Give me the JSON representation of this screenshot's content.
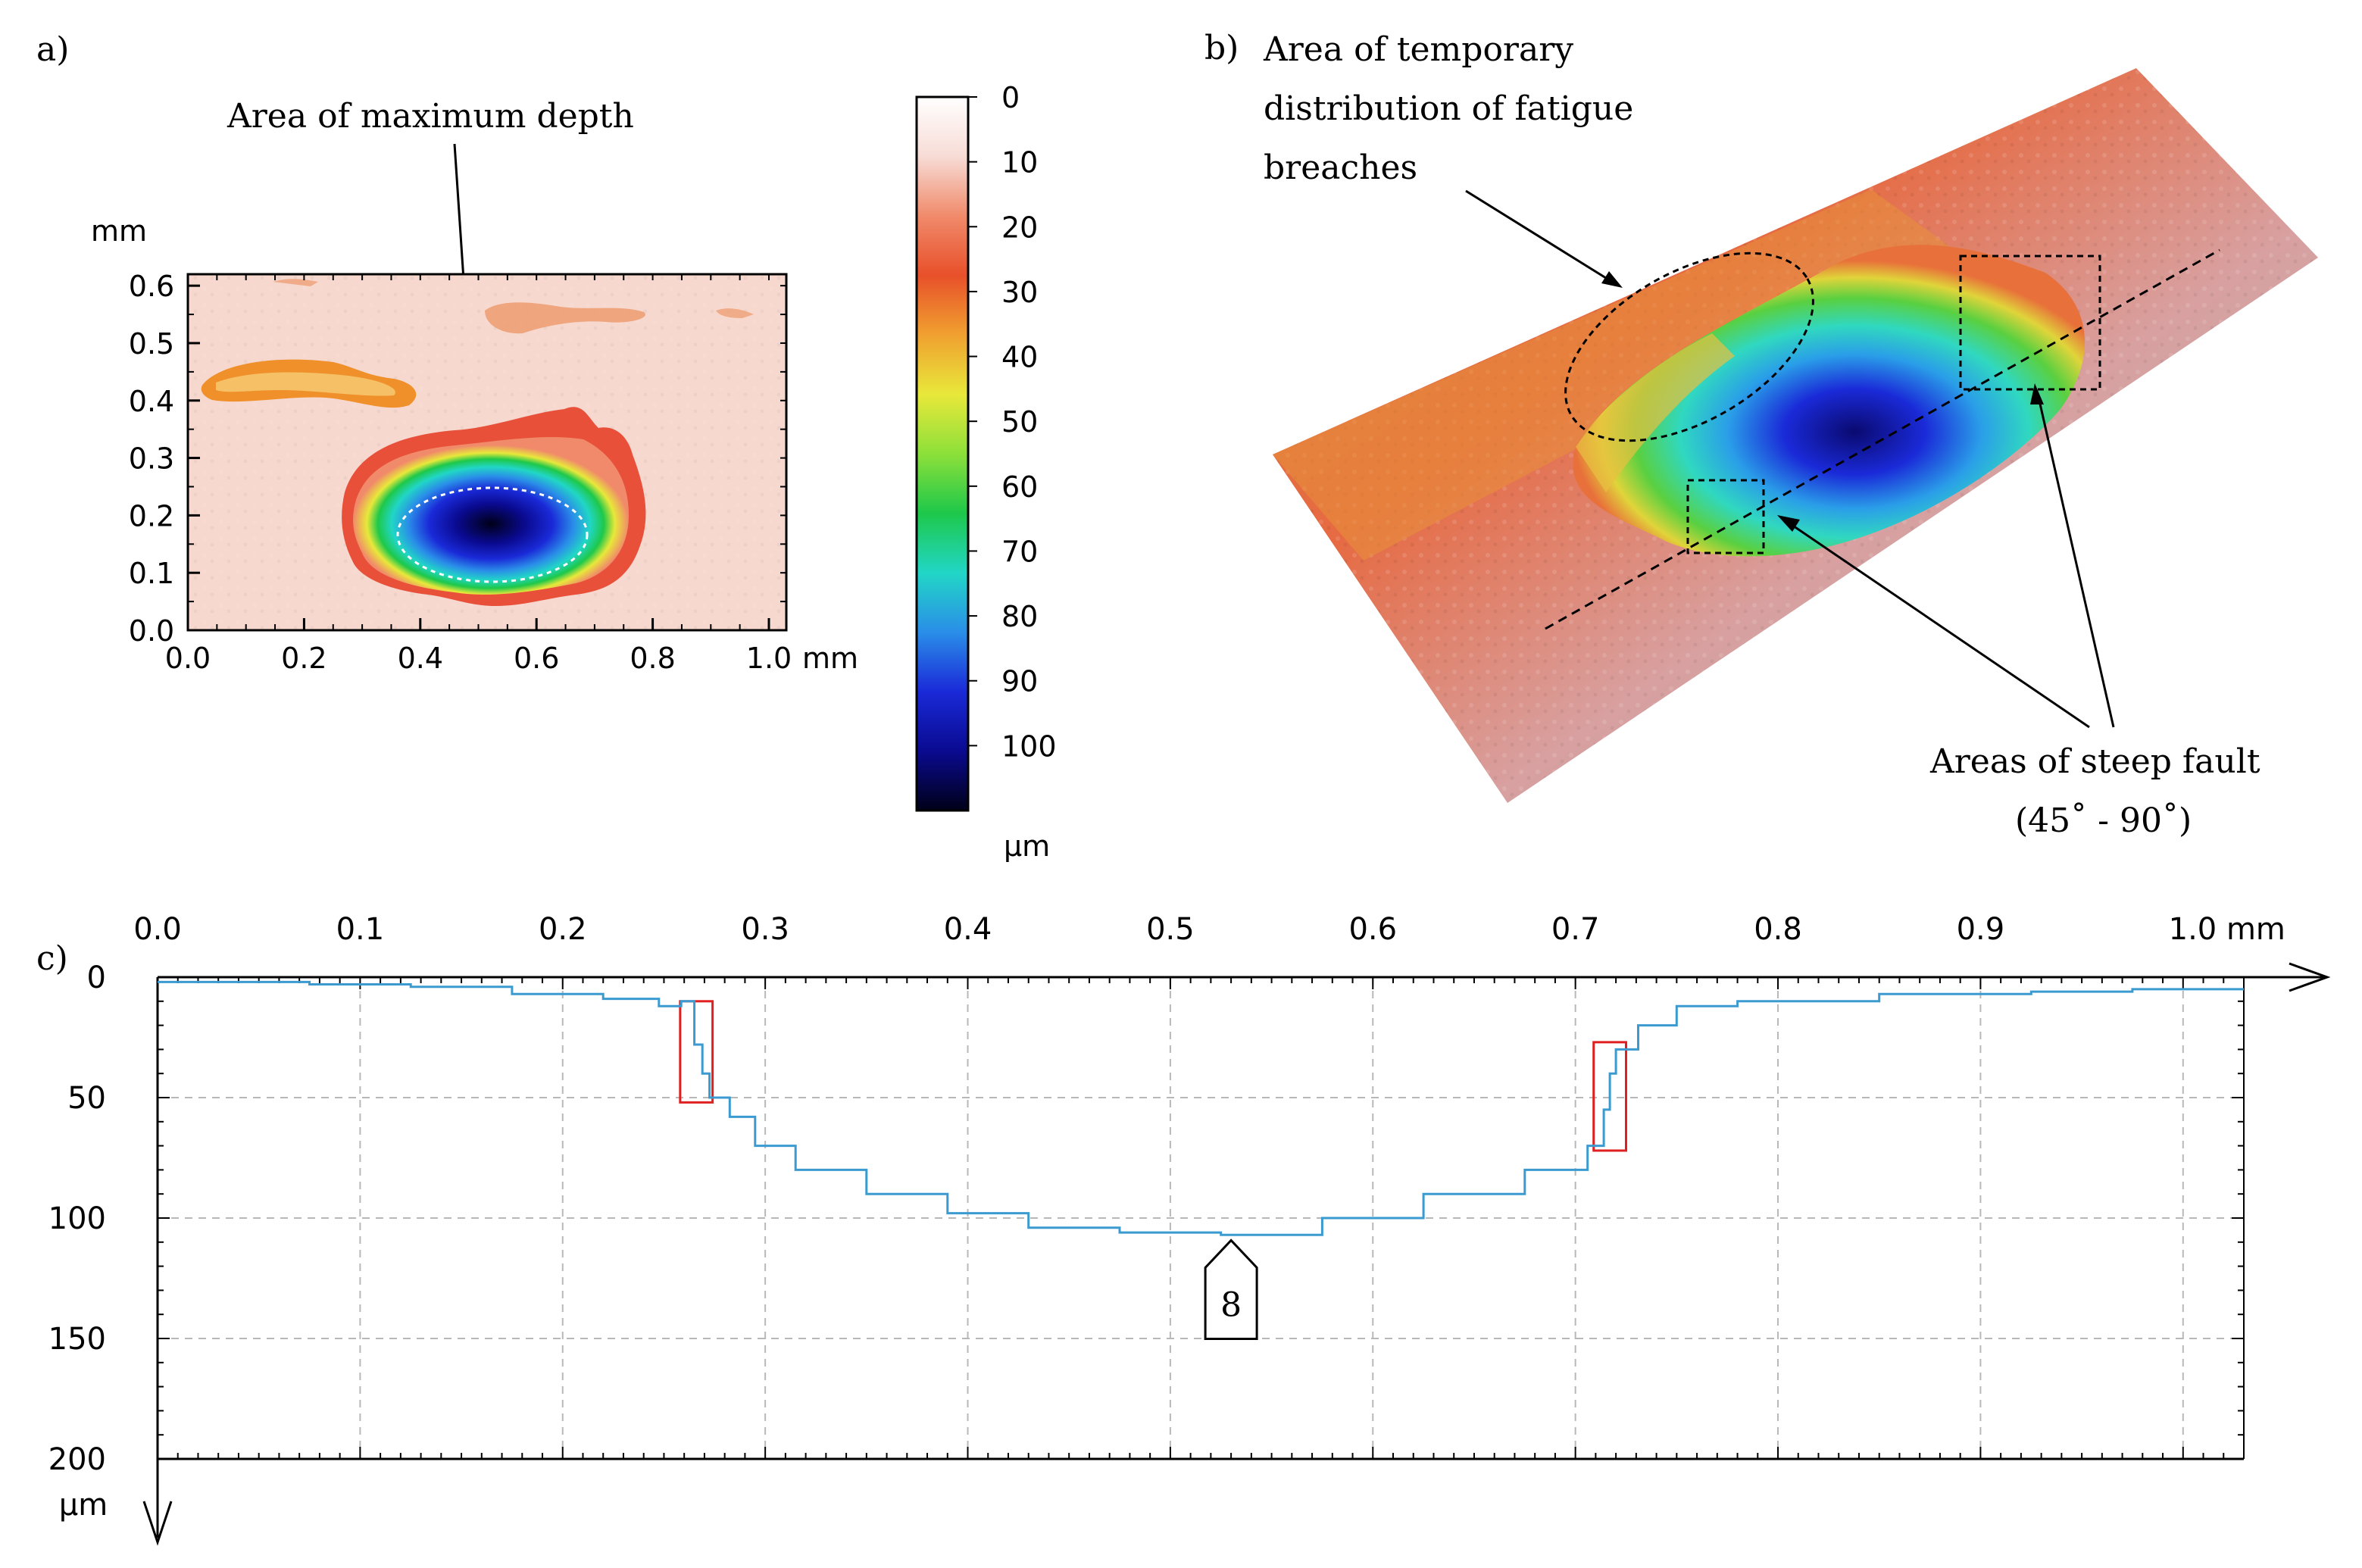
{
  "panels": {
    "a": {
      "label": "a)",
      "annotation": "Area of maximum depth",
      "x_unit": "mm",
      "y_unit": "mm",
      "x_ticks": [
        "0.0",
        "0.2",
        "0.4",
        "0.6",
        "0.8",
        "1.0"
      ],
      "y_ticks": [
        "0.0",
        "0.1",
        "0.2",
        "0.3",
        "0.4",
        "0.5",
        "0.6"
      ],
      "xlim": [
        0.0,
        1.03
      ],
      "ylim": [
        0.0,
        0.62
      ],
      "colorbar": {
        "unit": "µm",
        "ticks": [
          "0",
          "10",
          "20",
          "30",
          "40",
          "50",
          "60",
          "70",
          "80",
          "90",
          "100"
        ],
        "range": [
          0,
          110
        ],
        "stops": [
          "#ffffff",
          "#f7dcd6",
          "#f08a6a",
          "#e8502a",
          "#f0a030",
          "#e8e83a",
          "#8de03a",
          "#1ec84a",
          "#21d6c6",
          "#2a8ee8",
          "#1a2ad8",
          "#0a0a90",
          "#000018"
        ]
      }
    },
    "b": {
      "label": "b)",
      "annotation_top": [
        "Area of temporary",
        "distribution of fatigue",
        "breaches"
      ],
      "annotation_bottom": [
        "Areas of steep fault",
        "(45˚ - 90˚)"
      ]
    },
    "c": {
      "label": "c)",
      "x_unit": "mm",
      "y_unit": "µm",
      "marker_label": "8"
    }
  },
  "chart_data": [
    {
      "type": "heatmap",
      "title": "",
      "xlabel": "mm",
      "ylabel": "mm",
      "xlim": [
        0.0,
        1.03
      ],
      "ylim": [
        0.0,
        0.62
      ],
      "value_unit": "µm",
      "value_range": [
        0,
        110
      ],
      "deepest_region_center": {
        "x": 0.5,
        "y": 0.17
      },
      "deepest_value": 106
    },
    {
      "type": "line",
      "title": "",
      "xlabel": "mm",
      "ylabel": "µm",
      "xlim": [
        0.0,
        1.03
      ],
      "ylim": [
        0,
        200
      ],
      "y_inverted": true,
      "grid": true,
      "x_ticks": [
        "0.0",
        "0.1",
        "0.2",
        "0.3",
        "0.4",
        "0.5",
        "0.6",
        "0.7",
        "0.8",
        "0.9",
        "1.0 mm"
      ],
      "y_ticks": [
        "0",
        "50",
        "100",
        "150",
        "200"
      ],
      "series": [
        {
          "color": "#3b9bd0",
          "points": [
            [
              0.0,
              2
            ],
            [
              0.05,
              2
            ],
            [
              0.1,
              3
            ],
            [
              0.15,
              4
            ],
            [
              0.2,
              7
            ],
            [
              0.24,
              9
            ],
            [
              0.255,
              12
            ],
            [
              0.262,
              10
            ],
            [
              0.268,
              28
            ],
            [
              0.27,
              40
            ],
            [
              0.275,
              50
            ],
            [
              0.29,
              58
            ],
            [
              0.3,
              70
            ],
            [
              0.33,
              80
            ],
            [
              0.37,
              90
            ],
            [
              0.41,
              98
            ],
            [
              0.45,
              104
            ],
            [
              0.5,
              106
            ],
            [
              0.55,
              107
            ],
            [
              0.6,
              100
            ],
            [
              0.65,
              90
            ],
            [
              0.7,
              80
            ],
            [
              0.712,
              70
            ],
            [
              0.716,
              55
            ],
            [
              0.718,
              40
            ],
            [
              0.722,
              30
            ],
            [
              0.74,
              20
            ],
            [
              0.76,
              12
            ],
            [
              0.8,
              10
            ],
            [
              0.9,
              7
            ],
            [
              0.95,
              6
            ],
            [
              1.0,
              5
            ],
            [
              1.03,
              5
            ]
          ]
        }
      ],
      "highlight_boxes": [
        {
          "x": [
            0.258,
            0.274
          ],
          "y": [
            10,
            52
          ]
        },
        {
          "x": [
            0.709,
            0.725
          ],
          "y": [
            27,
            72
          ]
        }
      ],
      "marker": {
        "x": 0.53,
        "y": 108,
        "label": "8"
      }
    }
  ]
}
